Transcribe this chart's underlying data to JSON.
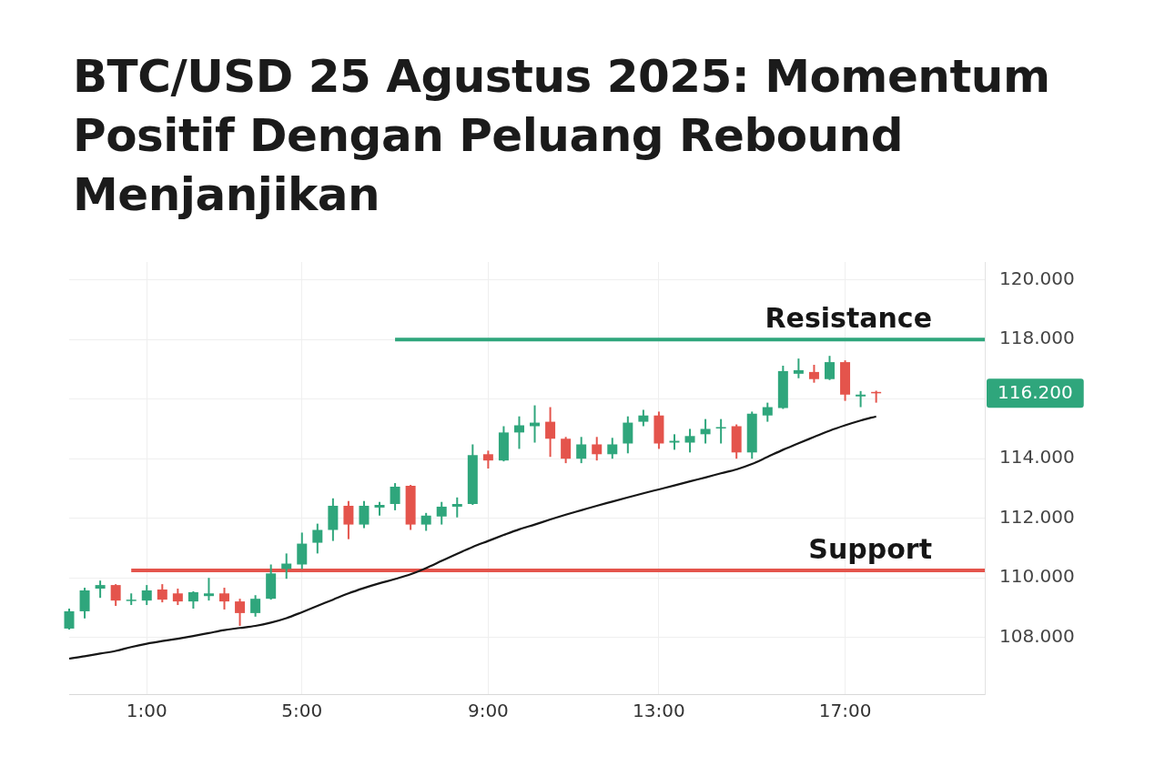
{
  "chart_data": {
    "type": "candlestick",
    "title": "BTC/USD 25 Agustus 2025: Momentum Positif Dengan Peluang Rebound Menjanjikan",
    "categories": [
      null,
      null,
      null,
      null,
      null,
      "1:00",
      null,
      null,
      null,
      null,
      null,
      null,
      null,
      null,
      null,
      "5:00",
      null,
      null,
      null,
      null,
      null,
      null,
      null,
      null,
      null,
      null,
      null,
      "9:00",
      null,
      null,
      null,
      null,
      null,
      null,
      null,
      null,
      null,
      null,
      "13:00",
      null,
      null,
      null,
      null,
      null,
      null,
      null,
      null,
      null,
      null,
      null,
      "17:00",
      null,
      null,
      null,
      null,
      null,
      null,
      null,
      null,
      null
    ],
    "ohlc": [
      [
        108300,
        108970,
        108270,
        108880
      ],
      [
        108880,
        109670,
        108640,
        109580
      ],
      [
        109640,
        109910,
        109330,
        109760
      ],
      [
        109760,
        109790,
        109060,
        109240
      ],
      [
        109240,
        109480,
        109090,
        109270
      ],
      [
        109240,
        109760,
        109090,
        109580
      ],
      [
        109610,
        109790,
        109180,
        109270
      ],
      [
        109480,
        109640,
        109090,
        109210
      ],
      [
        109210,
        109550,
        108970,
        109520
      ],
      [
        109390,
        110000,
        109240,
        109480
      ],
      [
        109480,
        109670,
        108940,
        109210
      ],
      [
        109210,
        109300,
        108390,
        108820
      ],
      [
        108820,
        109420,
        108700,
        109300
      ],
      [
        109300,
        110450,
        109270,
        110150
      ],
      [
        110300,
        110820,
        109970,
        110480
      ],
      [
        110450,
        111520,
        110300,
        111150
      ],
      [
        111180,
        111820,
        110820,
        111610
      ],
      [
        111610,
        112670,
        111240,
        112420
      ],
      [
        112420,
        112580,
        111300,
        111790
      ],
      [
        111790,
        112580,
        111670,
        112420
      ],
      [
        112360,
        112550,
        112090,
        112450
      ],
      [
        112480,
        113180,
        112270,
        113060
      ],
      [
        113090,
        113120,
        111610,
        111790
      ],
      [
        111790,
        112180,
        111580,
        112090
      ],
      [
        112060,
        112550,
        111790,
        112390
      ],
      [
        112390,
        112700,
        112030,
        112480
      ],
      [
        112480,
        114480,
        112450,
        114120
      ],
      [
        114150,
        114270,
        113670,
        113940
      ],
      [
        113940,
        115090,
        113910,
        114880
      ],
      [
        114880,
        115420,
        114330,
        115120
      ],
      [
        115090,
        115790,
        114540,
        115210
      ],
      [
        115240,
        115730,
        114060,
        114670
      ],
      [
        114670,
        114730,
        113850,
        114000
      ],
      [
        114000,
        114730,
        113850,
        114480
      ],
      [
        114480,
        114730,
        113940,
        114150
      ],
      [
        114150,
        114700,
        114000,
        114480
      ],
      [
        114510,
        115420,
        114180,
        115210
      ],
      [
        115240,
        115640,
        115090,
        115450
      ],
      [
        115450,
        115580,
        114330,
        114510
      ],
      [
        114540,
        114820,
        114300,
        114600
      ],
      [
        114540,
        115000,
        114210,
        114760
      ],
      [
        114820,
        115330,
        114510,
        115000
      ],
      [
        115030,
        115330,
        114510,
        115060
      ],
      [
        115090,
        115150,
        114000,
        114210
      ],
      [
        114210,
        115580,
        114000,
        115510
      ],
      [
        115450,
        115880,
        115240,
        115730
      ],
      [
        115700,
        117120,
        115670,
        116940
      ],
      [
        116850,
        117360,
        116700,
        116970
      ],
      [
        116910,
        117150,
        116550,
        116670
      ],
      [
        116670,
        117450,
        116640,
        117240
      ],
      [
        117240,
        117300,
        115940,
        116150
      ],
      [
        116090,
        116270,
        115730,
        116150
      ],
      [
        116240,
        116280,
        115880,
        116200
      ],
      null,
      null,
      null,
      null,
      null,
      null,
      null
    ],
    "colors": [
      "#2fa67c",
      "#2fa67c",
      "#2fa67c",
      "#e4544c",
      "#2fa67c",
      "#2fa67c",
      "#e4544c",
      "#e4544c",
      "#2fa67c",
      "#2fa67c",
      "#e4544c",
      "#e4544c",
      "#2fa67c",
      "#2fa67c",
      "#2fa67c",
      "#2fa67c",
      "#2fa67c",
      "#2fa67c",
      "#e4544c",
      "#2fa67c",
      "#2fa67c",
      "#2fa67c",
      "#e4544c",
      "#2fa67c",
      "#2fa67c",
      "#2fa67c",
      "#2fa67c",
      "#e4544c",
      "#2fa67c",
      "#2fa67c",
      "#2fa67c",
      "#e4544c",
      "#e4544c",
      "#2fa67c",
      "#e4544c",
      "#2fa67c",
      "#2fa67c",
      "#2fa67c",
      "#e4544c",
      "#2fa67c",
      "#2fa67c",
      "#2fa67c",
      "#2fa67c",
      "#e4544c",
      "#2fa67c",
      "#2fa67c",
      "#2fa67c",
      "#2fa67c",
      "#e4544c",
      "#2fa67c",
      "#e4544c",
      "#2fa67c",
      "#e4544c",
      null,
      null,
      null,
      null,
      null,
      null,
      null
    ],
    "series": [
      {
        "type": "line",
        "color": "#161616",
        "values": [
          107290,
          107370,
          107460,
          107550,
          107680,
          107790,
          107880,
          107960,
          108050,
          108150,
          108250,
          108320,
          108390,
          108500,
          108650,
          108850,
          109060,
          109270,
          109480,
          109660,
          109820,
          109960,
          110120,
          110330,
          110570,
          110810,
          111040,
          111240,
          111440,
          111630,
          111790,
          111960,
          112120,
          112270,
          112420,
          112560,
          112700,
          112840,
          112970,
          113100,
          113240,
          113370,
          113510,
          113640,
          113820,
          114060,
          114300,
          114520,
          114730,
          114940,
          115120,
          115280,
          115420,
          null,
          null,
          null,
          null,
          null,
          null,
          null
        ]
      },
      {
        "type": "line",
        "name": "Resistance",
        "color": "#2fa67c",
        "values": [
          null,
          null,
          null,
          null,
          null,
          null,
          null,
          null,
          null,
          null,
          null,
          null,
          null,
          null,
          null,
          null,
          null,
          null,
          null,
          null,
          null,
          118000,
          118000,
          118000,
          118000,
          118000,
          118000,
          118000,
          118000,
          118000,
          118000,
          118000,
          118000,
          118000,
          118000,
          118000,
          118000,
          118000,
          118000,
          118000,
          118000,
          118000,
          118000,
          118000,
          118000,
          118000,
          118000,
          118000,
          118000,
          118000,
          118000,
          118000,
          118000,
          118000,
          118000,
          118000,
          118000,
          118000,
          118000,
          118000
        ]
      },
      {
        "type": "line",
        "name": "Support",
        "color": "#e4544c",
        "values": [
          null,
          null,
          null,
          null,
          110250,
          110250,
          110250,
          110250,
          110250,
          110250,
          110250,
          110250,
          110250,
          110250,
          110250,
          110250,
          110250,
          110250,
          110250,
          110250,
          110250,
          110250,
          110250,
          110250,
          110250,
          110250,
          110250,
          110250,
          110250,
          110250,
          110250,
          110250,
          110250,
          110250,
          110250,
          110250,
          110250,
          110250,
          110250,
          110250,
          110250,
          110250,
          110250,
          110250,
          110250,
          110250,
          110250,
          110250,
          110250,
          110250,
          110250,
          110250,
          110250,
          110250,
          110250,
          110250,
          110250,
          110250,
          110250,
          110250
        ]
      }
    ],
    "ylim": [
      106100,
      120600
    ],
    "yticks": [
      {
        "value": 108000,
        "label": "108.000"
      },
      {
        "value": 110000,
        "label": "110.000"
      },
      {
        "value": 112000,
        "label": "112.000"
      },
      {
        "value": 114000,
        "label": "114.000"
      },
      {
        "value": 116000,
        "label": null
      },
      {
        "value": 118000,
        "label": "118.000"
      },
      {
        "value": 120000,
        "label": "120.000"
      }
    ],
    "annotations": [
      "116.200"
    ],
    "grid": true
  }
}
